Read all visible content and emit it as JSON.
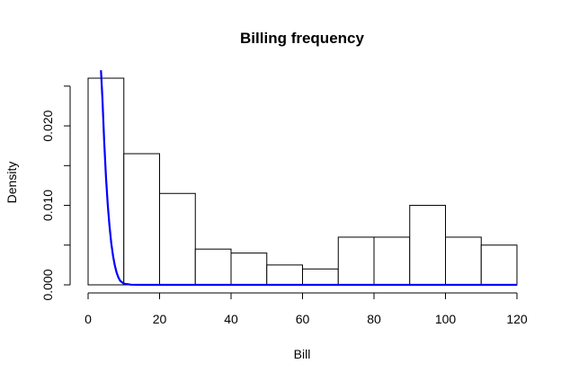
{
  "chart_data": {
    "type": "bar",
    "title": "Billing frequency",
    "xlabel": "Bill",
    "ylabel": "Density",
    "xlim": [
      0,
      120
    ],
    "ylim": [
      0,
      0.027
    ],
    "x_ticks": [
      0,
      20,
      40,
      60,
      80,
      100,
      120
    ],
    "x_tick_labels": [
      "0",
      "20",
      "40",
      "60",
      "80",
      "100",
      "120"
    ],
    "y_ticks": [
      0,
      0.005,
      0.01,
      0.015,
      0.02,
      0.025
    ],
    "y_tick_labels": [
      "0.000",
      "0.010",
      "0.020"
    ],
    "y_tick_label_values": [
      0,
      0.01,
      0.02
    ],
    "bins": [
      {
        "start": 0,
        "end": 10,
        "density": 0.026
      },
      {
        "start": 10,
        "end": 20,
        "density": 0.0165
      },
      {
        "start": 20,
        "end": 30,
        "density": 0.0115
      },
      {
        "start": 30,
        "end": 40,
        "density": 0.0045
      },
      {
        "start": 40,
        "end": 50,
        "density": 0.004
      },
      {
        "start": 50,
        "end": 60,
        "density": 0.0025
      },
      {
        "start": 60,
        "end": 70,
        "density": 0.002
      },
      {
        "start": 70,
        "end": 80,
        "density": 0.006
      },
      {
        "start": 80,
        "end": 90,
        "density": 0.006
      },
      {
        "start": 90,
        "end": 100,
        "density": 0.01
      },
      {
        "start": 100,
        "end": 110,
        "density": 0.006
      },
      {
        "start": 110,
        "end": 120,
        "density": 0.005
      }
    ],
    "curve": {
      "color": "#0000ff",
      "description": "exponential density overlay",
      "points": [
        [
          3.6,
          0.027
        ],
        [
          4.0,
          0.0235
        ],
        [
          4.5,
          0.018
        ],
        [
          5.0,
          0.0135
        ],
        [
          5.5,
          0.01
        ],
        [
          6.0,
          0.0074
        ],
        [
          6.5,
          0.0052
        ],
        [
          7.0,
          0.0036
        ],
        [
          7.5,
          0.0024
        ],
        [
          8.0,
          0.0015
        ],
        [
          8.5,
          0.0009
        ],
        [
          9.0,
          0.0005
        ],
        [
          10.0,
          0.00015
        ],
        [
          12.0,
          2e-05
        ],
        [
          15.0,
          0.0
        ],
        [
          120.0,
          0.0
        ]
      ]
    },
    "bar_fill": "#ffffff",
    "bar_stroke": "#000000",
    "grid": false,
    "legend": "none"
  }
}
